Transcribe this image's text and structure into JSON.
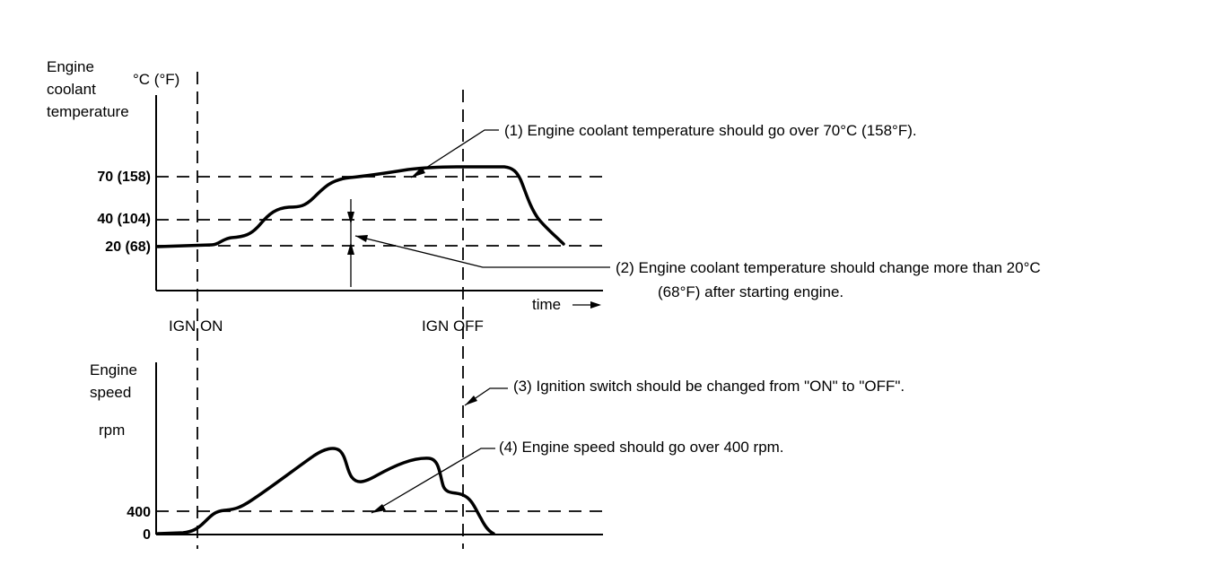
{
  "top_chart": {
    "ylabel_line1": "Engine",
    "ylabel_line2": "coolant",
    "ylabel_line3": "temperature",
    "unit": "°C (°F)",
    "ticks": [
      "70 (158)",
      "40 (104)",
      "20 (68)"
    ],
    "time_label": "time",
    "ign_on": "IGN ON",
    "ign_off": "IGN OFF"
  },
  "bottom_chart": {
    "ylabel_line1": "Engine",
    "ylabel_line2": "speed",
    "unit": "rpm",
    "ticks": [
      "400",
      "0"
    ]
  },
  "notes": {
    "n1": "(1)   Engine coolant temperature should go over 70°C (158°F).",
    "n2_line1": "(2)   Engine coolant temperature should change more than 20°C",
    "n2_line2": "(68°F) after starting engine.",
    "n3": "(3)   Ignition switch should be changed from \"ON\" to \"OFF\".",
    "n4": "(4)   Engine speed should go over 400 rpm."
  }
}
